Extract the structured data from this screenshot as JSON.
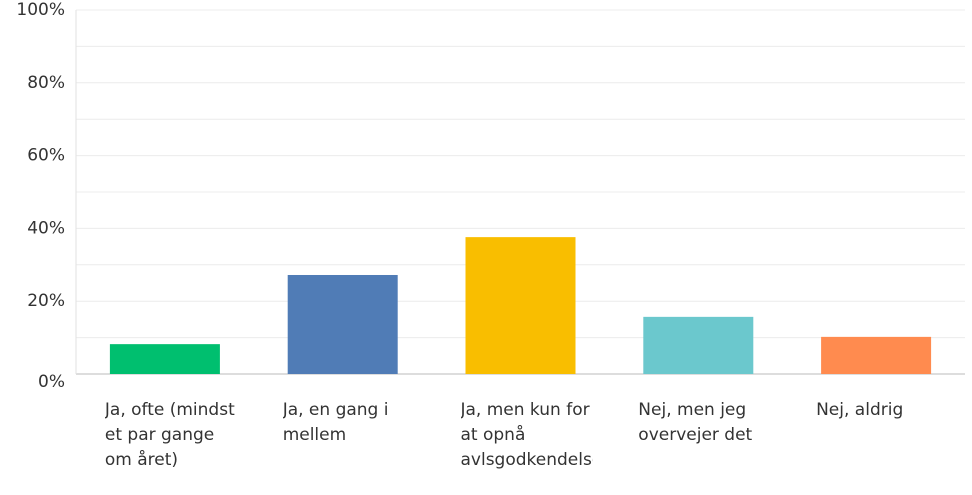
{
  "chart_data": {
    "type": "bar",
    "categories": [
      "Ja, ofte (mindst et par gange om året)",
      "Ja, en gang i mellem",
      "Ja, men kun for at opnå avlsgodkendelse",
      "Nej, men jeg overvejer det",
      "Nej, aldrig"
    ],
    "values": [
      8.2,
      27.2,
      37.6,
      15.7,
      10.2
    ],
    "colors": [
      "#00bf6f",
      "#507cb6",
      "#f9be00",
      "#6bc8cd",
      "#ff8b4f"
    ],
    "ylim": [
      0,
      100
    ],
    "yticks": [
      {
        "value": 0,
        "label": "0%"
      },
      {
        "value": 20,
        "label": "20%"
      },
      {
        "value": 40,
        "label": "40%"
      },
      {
        "value": 60,
        "label": "60%"
      },
      {
        "value": 80,
        "label": "80%"
      },
      {
        "value": 100,
        "label": "100%"
      }
    ],
    "minor_yticks": [
      10,
      30,
      50,
      70,
      90
    ],
    "grid": true
  }
}
